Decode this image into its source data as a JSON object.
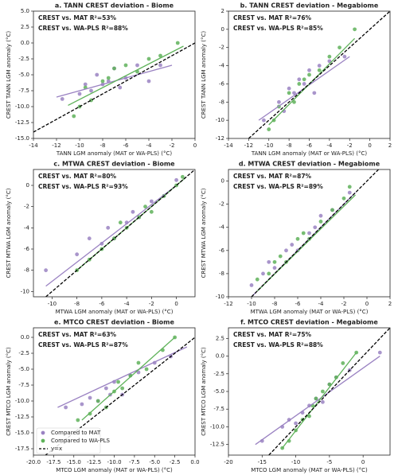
{
  "chart_data": [
    {
      "type": "scatter",
      "title": "a. TANN CREST deviation - Biome",
      "x_label": "TANN LGM anomaly (MAT or WA-PLS) (°C)",
      "y_label": "CREST TANN LGM anomaly (°C)",
      "xlim": [
        -14,
        0
      ],
      "xticks": [
        -14,
        -12,
        -10,
        -8,
        -6,
        -4,
        -2,
        0
      ],
      "ylim": [
        -15,
        5
      ],
      "yticks": [
        {
          "value": -15,
          "label": "-15.0"
        },
        {
          "value": -12.5,
          "label": "-12.5"
        },
        {
          "value": -10,
          "label": "-10.0"
        },
        {
          "value": -7.5,
          "label": "-7.5"
        },
        {
          "value": -5,
          "label": "-5.0"
        },
        {
          "value": -2.5,
          "label": "-2.5"
        },
        {
          "value": 0,
          "label": "0.0"
        },
        {
          "value": 2.5,
          "label": "2.5"
        },
        {
          "value": 5,
          "label": "5.0"
        }
      ],
      "identity_line": true,
      "annotations": [
        {
          "text": "CREST vs. MAT R²=53%",
          "color": "#7e5ea8"
        },
        {
          "text": "CREST vs. WA-PLS R²=88%",
          "color": "#58a852"
        }
      ],
      "series": [
        {
          "name": "Compared to MAT",
          "color": "#9a82c2",
          "x": [
            -11.5,
            -10,
            -9.5,
            -9,
            -8.5,
            -8,
            -7.5,
            -7,
            -6.5,
            -6,
            -5,
            -4,
            -3
          ],
          "y": [
            -8.8,
            -8,
            -6.5,
            -7.5,
            -5,
            -6.5,
            -6,
            -4,
            -7,
            -5.5,
            -3.5,
            -6,
            -3.5
          ],
          "fit_x": [
            -12,
            -2
          ],
          "fit_y": [
            -8.5,
            -3.5
          ]
        },
        {
          "name": "Compared to WA-PLS",
          "color": "#5fb25a",
          "x": [
            -10.5,
            -10,
            -9.5,
            -9,
            -8,
            -7.5,
            -7,
            -6,
            -5,
            -4,
            -3,
            -1.5
          ],
          "y": [
            -11.5,
            -10,
            -7,
            -9,
            -6,
            -5.5,
            -4,
            -3.5,
            -4.5,
            -2.5,
            -2,
            0
          ],
          "fit_x": [
            -11,
            -1
          ],
          "fit_y": [
            -9.8,
            -0.5
          ]
        }
      ]
    },
    {
      "type": "scatter",
      "title": "b. TANN CREST deviation - Megabiome",
      "x_label": "TANN LGM anomaly (MAT or WA-PLS) (°C)",
      "y_label": "CREST TANN LGM anomaly (°C)",
      "xlim": [
        -14,
        2
      ],
      "xticks": [
        -14,
        -12,
        -10,
        -8,
        -6,
        -4,
        -2,
        0,
        2
      ],
      "ylim": [
        -12,
        2
      ],
      "yticks": [
        -12,
        -10,
        -8,
        -6,
        -4,
        -2,
        0,
        2
      ],
      "identity_line": true,
      "annotations": [
        {
          "text": "CREST vs. MAT R²=76%",
          "color": "#7e5ea8"
        },
        {
          "text": "CREST vs. WA-PLS R²=85%",
          "color": "#58a852"
        }
      ],
      "series": [
        {
          "name": "Compared to MAT",
          "color": "#9a82c2",
          "x": [
            -10.5,
            -9,
            -8.5,
            -8,
            -7.5,
            -7,
            -6.5,
            -6,
            -5.5,
            -5,
            -4,
            -2.5
          ],
          "y": [
            -10,
            -8,
            -9,
            -6.5,
            -7,
            -5.5,
            -6,
            -4.5,
            -7,
            -4,
            -3.5,
            -3
          ],
          "fit_x": [
            -11,
            -2
          ],
          "fit_y": [
            -10,
            -3
          ]
        },
        {
          "name": "Compared to WA-PLS",
          "color": "#5fb25a",
          "x": [
            -10,
            -9.5,
            -9,
            -8,
            -7.5,
            -7,
            -6.5,
            -6,
            -5,
            -4,
            -3,
            -1.5
          ],
          "y": [
            -11,
            -10,
            -8.5,
            -7,
            -8,
            -6,
            -5.5,
            -5,
            -4.5,
            -3,
            -2,
            0
          ],
          "fit_x": [
            -10,
            -1.5
          ],
          "fit_y": [
            -10.5,
            -1
          ]
        }
      ]
    },
    {
      "type": "scatter",
      "title": "c. MTWA CREST deviation - Biome",
      "x_label": "MTWA LGM anomaly (MAT or WA-PLS) (°C)",
      "y_label": "CREST MTWA LGM anomaly (°C)",
      "xlim": [
        -11.5,
        1.5
      ],
      "xticks": [
        -10,
        -8,
        -6,
        -4,
        -2,
        0
      ],
      "ylim": [
        -10.5,
        1.5
      ],
      "yticks": [
        -10,
        -8,
        -6,
        -4,
        -2,
        0
      ],
      "identity_line": true,
      "annotations": [
        {
          "text": "CREST vs. MAT R²=80%",
          "color": "#7e5ea8"
        },
        {
          "text": "CREST vs. WA-PLS R²=93%",
          "color": "#58a852"
        }
      ],
      "series": [
        {
          "name": "Compared to MAT",
          "color": "#9a82c2",
          "x": [
            -10.5,
            -8,
            -7,
            -6,
            -5.5,
            -5,
            -4,
            -3.5,
            -3,
            -2,
            -1,
            0
          ],
          "y": [
            -8,
            -6.5,
            -5,
            -5.5,
            -4,
            -5,
            -3.5,
            -2.5,
            -3,
            -1.5,
            -1,
            0.5
          ],
          "fit_x": [
            -10.5,
            0
          ],
          "fit_y": [
            -9.5,
            0
          ]
        },
        {
          "name": "Compared to WA-PLS",
          "color": "#5fb25a",
          "x": [
            -8,
            -7,
            -6,
            -5,
            -4.5,
            -4,
            -3,
            -2.5,
            -2,
            -1,
            0,
            0.5
          ],
          "y": [
            -8,
            -7,
            -6,
            -5,
            -3.5,
            -4,
            -3,
            -2,
            -2.5,
            -1,
            0,
            0.8
          ],
          "fit_x": [
            -8,
            0.8
          ],
          "fit_y": [
            -8,
            0.8
          ]
        }
      ]
    },
    {
      "type": "scatter",
      "title": "d. MTWA CREST deviation - Megabiome",
      "x_label": "MTWA LGM anomaly (MAT or WA-PLS) (°C)",
      "y_label": "CREST MTWA LGM anomaly (°C)",
      "xlim": [
        -12,
        2
      ],
      "xticks": [
        -12,
        -10,
        -8,
        -6,
        -4,
        -2,
        0,
        2
      ],
      "ylim": [
        -10,
        1
      ],
      "yticks": [
        -10,
        -8,
        -6,
        -4,
        -2,
        0
      ],
      "identity_line": true,
      "annotations": [
        {
          "text": "CREST vs. MAT R²=87%",
          "color": "#7e5ea8"
        },
        {
          "text": "CREST vs. WA-PLS R²=89%",
          "color": "#58a852"
        }
      ],
      "series": [
        {
          "name": "Compared to MAT",
          "color": "#9a82c2",
          "x": [
            -10,
            -9,
            -8.5,
            -8,
            -7,
            -6.5,
            -6,
            -5,
            -4.5,
            -4,
            -3,
            -1.5
          ],
          "y": [
            -9,
            -8,
            -7,
            -7.5,
            -6,
            -5.5,
            -6,
            -4.5,
            -4,
            -3,
            -2.5,
            -1
          ],
          "fit_x": [
            -10,
            -1
          ],
          "fit_y": [
            -10,
            -1
          ]
        },
        {
          "name": "Compared to WA-PLS",
          "color": "#5fb25a",
          "x": [
            -9.5,
            -8.5,
            -8,
            -7.5,
            -7,
            -6,
            -5.5,
            -5,
            -4,
            -3,
            -2,
            -1.5
          ],
          "y": [
            -8.5,
            -8,
            -7,
            -6.5,
            -7,
            -5,
            -4.5,
            -5,
            -3.5,
            -2.5,
            -1.5,
            -0.5
          ],
          "fit_x": [
            -9.5,
            -1
          ],
          "fit_y": [
            -9.5,
            -1.2
          ]
        }
      ]
    },
    {
      "type": "scatter",
      "title": "e. MTCO CREST deviation - Biome",
      "x_label": "MTCO LGM anomaly (MAT or WA-PLS) (°C)",
      "y_label": "CREST MTCO LGM anomaly (°C)",
      "xlim": [
        -20,
        0
      ],
      "xticks": [
        {
          "value": -20,
          "label": "-20.0"
        },
        {
          "value": -17.5,
          "label": "-17.5"
        },
        {
          "value": -15,
          "label": "-15.0"
        },
        {
          "value": -12.5,
          "label": "-12.5"
        },
        {
          "value": -10,
          "label": "-10.0"
        },
        {
          "value": -7.5,
          "label": "-7.5"
        },
        {
          "value": -5,
          "label": "-5.0"
        },
        {
          "value": -2.5,
          "label": "-2.5"
        },
        {
          "value": 0,
          "label": "0.0"
        }
      ],
      "ylim": [
        -18.5,
        1.5
      ],
      "yticks": [
        {
          "value": -17.5,
          "label": "-17.5"
        },
        {
          "value": -15,
          "label": "-15.0"
        },
        {
          "value": -12.5,
          "label": "-12.5"
        },
        {
          "value": -10,
          "label": "-10.0"
        },
        {
          "value": -7.5,
          "label": "-7.5"
        },
        {
          "value": -5,
          "label": "-5.0"
        },
        {
          "value": -2.5,
          "label": "-2.5"
        },
        {
          "value": 0,
          "label": "0.0"
        }
      ],
      "identity_line": true,
      "identity_label": "y=x",
      "legend": "lower left",
      "annotations": [
        {
          "text": "CREST vs. MAT R²=63%",
          "color": "#7e5ea8"
        },
        {
          "text": "CREST vs. WA-PLS R²=87%",
          "color": "#58a852"
        }
      ],
      "series": [
        {
          "name": "Compared to MAT",
          "color": "#9a82c2",
          "x": [
            -16,
            -14,
            -13,
            -12,
            -11,
            -10.5,
            -10,
            -9,
            -8,
            -7,
            -5,
            -3
          ],
          "y": [
            -11,
            -10.5,
            -9.5,
            -10,
            -8,
            -9,
            -7,
            -9,
            -6,
            -5.5,
            -4,
            -3
          ],
          "fit_x": [
            -17,
            -1
          ],
          "fit_y": [
            -11,
            -1.5
          ]
        },
        {
          "name": "Compared to WA-PLS",
          "color": "#5fb25a",
          "x": [
            -14.5,
            -13,
            -12,
            -11,
            -10,
            -9.5,
            -9,
            -8,
            -7,
            -6,
            -4,
            -2.5
          ],
          "y": [
            -13,
            -12,
            -10,
            -11,
            -8.5,
            -7,
            -8,
            -6,
            -4,
            -5,
            -2,
            0
          ],
          "fit_x": [
            -14,
            -2.5
          ],
          "fit_y": [
            -13,
            0
          ]
        }
      ]
    },
    {
      "type": "scatter",
      "title": "f. MTCO CREST deviation - Megabiome",
      "x_label": "MTCO LGM anomaly (MAT or WA-PLS) (°C)",
      "y_label": "CREST MTCO LGM anomaly (°C)",
      "xlim": [
        -20,
        4
      ],
      "xticks": [
        -20,
        -15,
        -10,
        -5,
        0
      ],
      "ylim": [
        -14,
        4
      ],
      "yticks": [
        {
          "value": -12.5,
          "label": "-12.5"
        },
        {
          "value": -10,
          "label": "-10.0"
        },
        {
          "value": -7.5,
          "label": "-7.5"
        },
        {
          "value": -5,
          "label": "-5.0"
        },
        {
          "value": -2.5,
          "label": "-2.5"
        },
        {
          "value": 0,
          "label": "0.0"
        },
        {
          "value": 2.5,
          "label": "2.5"
        }
      ],
      "identity_line": true,
      "annotations": [
        {
          "text": "CREST vs. MAT R²=75%",
          "color": "#7e5ea8"
        },
        {
          "text": "CREST vs. WA-PLS R²=88%",
          "color": "#58a852"
        }
      ],
      "series": [
        {
          "name": "Compared to MAT",
          "color": "#9a82c2",
          "x": [
            -15,
            -12,
            -11,
            -10,
            -9,
            -8,
            -7,
            -6,
            -5,
            -4,
            -2,
            2.5
          ],
          "y": [
            -12,
            -10,
            -9,
            -9.5,
            -8,
            -7,
            -6,
            -6.5,
            -4,
            -3,
            -2,
            0.5
          ],
          "fit_x": [
            -16,
            2.5
          ],
          "fit_y": [
            -12.5,
            0
          ]
        },
        {
          "name": "Compared to WA-PLS",
          "color": "#5fb25a",
          "x": [
            -12,
            -11,
            -10,
            -9,
            -8,
            -7.5,
            -7,
            -6,
            -5,
            -4,
            -3,
            -1
          ],
          "y": [
            -13,
            -12,
            -10.5,
            -9,
            -8.5,
            -7,
            -6,
            -5,
            -4,
            -3,
            -1,
            0.5
          ],
          "fit_x": [
            -12,
            -1
          ],
          "fit_y": [
            -13,
            0.5
          ]
        }
      ]
    }
  ]
}
